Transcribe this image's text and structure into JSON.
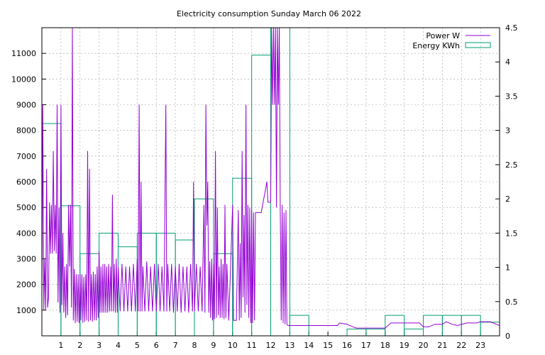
{
  "chart_data": {
    "type": "line",
    "title": "Electricity consumption Sunday March 06 2022",
    "x": {
      "range": [
        0,
        24
      ],
      "ticks": [
        1,
        2,
        3,
        4,
        5,
        6,
        7,
        8,
        9,
        10,
        11,
        12,
        13,
        14,
        15,
        16,
        17,
        18,
        19,
        20,
        21,
        22,
        23
      ]
    },
    "y_left": {
      "range": [
        0,
        12000
      ],
      "ticks": [
        1000,
        2000,
        3000,
        4000,
        5000,
        6000,
        7000,
        8000,
        9000,
        10000,
        11000
      ]
    },
    "y_right": {
      "range": [
        0,
        4.5
      ],
      "ticks": [
        "0",
        "0.5",
        "1",
        "1.5",
        "2",
        "2.5",
        "3",
        "3.5",
        "4",
        "4.5"
      ]
    },
    "grid": true,
    "legend_position": "top-right",
    "colors": {
      "power": "#9400d3",
      "energy": "#009e73"
    },
    "series": [
      {
        "name": "Power W",
        "axis": "left",
        "style": "line",
        "points": [
          [
            0,
            1000
          ],
          [
            0.05,
            9000
          ],
          [
            0.1,
            1000
          ],
          [
            0.15,
            3000
          ],
          [
            0.2,
            1000
          ],
          [
            0.25,
            6500
          ],
          [
            0.3,
            1100
          ],
          [
            0.35,
            1500
          ],
          [
            0.4,
            5200
          ],
          [
            0.45,
            3200
          ],
          [
            0.5,
            5100
          ],
          [
            0.55,
            3200
          ],
          [
            0.6,
            7200
          ],
          [
            0.65,
            3300
          ],
          [
            0.7,
            5100
          ],
          [
            0.75,
            3200
          ],
          [
            0.8,
            9000
          ],
          [
            0.85,
            1300
          ],
          [
            0.9,
            5000
          ],
          [
            0.95,
            900
          ],
          [
            1.0,
            9000
          ],
          [
            1.05,
            1200
          ],
          [
            1.1,
            4000
          ],
          [
            1.15,
            900
          ],
          [
            1.2,
            2700
          ],
          [
            1.25,
            700
          ],
          [
            1.3,
            2800
          ],
          [
            1.35,
            800
          ],
          [
            1.4,
            5100
          ],
          [
            1.45,
            2700
          ],
          [
            1.5,
            5100
          ],
          [
            1.55,
            1100
          ],
          [
            1.6,
            12000
          ],
          [
            1.65,
            600
          ],
          [
            1.7,
            2600
          ],
          [
            1.75,
            500
          ],
          [
            1.8,
            2400
          ],
          [
            1.85,
            550
          ],
          [
            1.9,
            2400
          ],
          [
            1.95,
            500
          ],
          [
            2.0,
            2400
          ],
          [
            2.05,
            600
          ],
          [
            2.1,
            2400
          ],
          [
            2.15,
            500
          ],
          [
            2.2,
            2300
          ],
          [
            2.25,
            550
          ],
          [
            2.3,
            2400
          ],
          [
            2.35,
            600
          ],
          [
            2.4,
            7200
          ],
          [
            2.45,
            550
          ],
          [
            2.5,
            6500
          ],
          [
            2.55,
            600
          ],
          [
            2.6,
            2400
          ],
          [
            2.65,
            550
          ],
          [
            2.7,
            2500
          ],
          [
            2.75,
            600
          ],
          [
            2.8,
            2400
          ],
          [
            2.85,
            600
          ],
          [
            2.9,
            2700
          ],
          [
            2.95,
            700
          ],
          [
            3.0,
            3300
          ],
          [
            3.05,
            900
          ],
          [
            3.1,
            2700
          ],
          [
            3.15,
            900
          ],
          [
            3.2,
            2800
          ],
          [
            3.25,
            900
          ],
          [
            3.3,
            2800
          ],
          [
            3.35,
            900
          ],
          [
            3.4,
            2700
          ],
          [
            3.45,
            900
          ],
          [
            3.5,
            2800
          ],
          [
            3.55,
            950
          ],
          [
            3.6,
            2700
          ],
          [
            3.65,
            950
          ],
          [
            3.7,
            5500
          ],
          [
            3.75,
            950
          ],
          [
            3.8,
            2800
          ],
          [
            3.85,
            900
          ],
          [
            3.9,
            3000
          ],
          [
            3.95,
            900
          ],
          [
            4.0,
            2700
          ],
          [
            4.1,
            950
          ],
          [
            4.2,
            2800
          ],
          [
            4.3,
            950
          ],
          [
            4.4,
            2700
          ],
          [
            4.5,
            950
          ],
          [
            4.6,
            2700
          ],
          [
            4.7,
            950
          ],
          [
            4.8,
            2800
          ],
          [
            4.9,
            950
          ],
          [
            5.0,
            3000
          ],
          [
            5.05,
            950
          ],
          [
            5.1,
            9000
          ],
          [
            5.15,
            950
          ],
          [
            5.2,
            6000
          ],
          [
            5.25,
            950
          ],
          [
            5.3,
            2700
          ],
          [
            5.4,
            950
          ],
          [
            5.5,
            2900
          ],
          [
            5.6,
            950
          ],
          [
            5.7,
            2700
          ],
          [
            5.8,
            950
          ],
          [
            5.9,
            2800
          ],
          [
            6.0,
            950
          ],
          [
            6.1,
            2800
          ],
          [
            6.2,
            950
          ],
          [
            6.3,
            2700
          ],
          [
            6.4,
            950
          ],
          [
            6.5,
            9000
          ],
          [
            6.55,
            950
          ],
          [
            6.6,
            2800
          ],
          [
            6.7,
            950
          ],
          [
            6.8,
            2800
          ],
          [
            6.9,
            900
          ],
          [
            7.0,
            2700
          ],
          [
            7.1,
            950
          ],
          [
            7.2,
            2800
          ],
          [
            7.3,
            900
          ],
          [
            7.4,
            2700
          ],
          [
            7.5,
            950
          ],
          [
            7.6,
            2700
          ],
          [
            7.7,
            900
          ],
          [
            7.8,
            2800
          ],
          [
            7.9,
            950
          ],
          [
            7.95,
            6000
          ],
          [
            8.0,
            950
          ],
          [
            8.1,
            2800
          ],
          [
            8.2,
            950
          ],
          [
            8.3,
            2700
          ],
          [
            8.4,
            950
          ],
          [
            8.5,
            5100
          ],
          [
            8.55,
            900
          ],
          [
            8.6,
            9000
          ],
          [
            8.65,
            4300
          ],
          [
            8.7,
            6000
          ],
          [
            8.75,
            900
          ],
          [
            8.8,
            2900
          ],
          [
            8.85,
            700
          ],
          [
            8.9,
            3000
          ],
          [
            8.95,
            600
          ],
          [
            9.0,
            2800
          ],
          [
            9.05,
            650
          ],
          [
            9.1,
            7200
          ],
          [
            9.15,
            700
          ],
          [
            9.2,
            5000
          ],
          [
            9.25,
            800
          ],
          [
            9.3,
            2700
          ],
          [
            9.35,
            700
          ],
          [
            9.4,
            3000
          ],
          [
            9.45,
            700
          ],
          [
            9.5,
            2800
          ],
          [
            9.55,
            650
          ],
          [
            9.6,
            5100
          ],
          [
            9.65,
            700
          ],
          [
            9.7,
            2800
          ],
          [
            9.8,
            600
          ],
          [
            10.0,
            5100
          ],
          [
            10.05,
            600
          ],
          [
            10.2,
            600
          ],
          [
            10.3,
            4900
          ],
          [
            10.35,
            600
          ],
          [
            10.4,
            3600
          ],
          [
            10.45,
            700
          ],
          [
            10.5,
            7200
          ],
          [
            10.55,
            1500
          ],
          [
            10.6,
            4700
          ],
          [
            10.65,
            900
          ],
          [
            10.7,
            9000
          ],
          [
            10.75,
            1200
          ],
          [
            10.8,
            5100
          ],
          [
            10.85,
            700
          ],
          [
            10.9,
            5000
          ],
          [
            10.95,
            500
          ],
          [
            11.0,
            4900
          ],
          [
            11.05,
            500
          ],
          [
            11.1,
            4800
          ],
          [
            11.15,
            600
          ],
          [
            11.2,
            4800
          ],
          [
            11.3,
            4800
          ],
          [
            11.5,
            4800
          ],
          [
            11.8,
            6000
          ],
          [
            11.85,
            5200
          ],
          [
            12.0,
            5200
          ],
          [
            12.05,
            12000
          ],
          [
            12.1,
            9000
          ],
          [
            12.15,
            12000
          ],
          [
            12.2,
            9000
          ],
          [
            12.25,
            12000
          ],
          [
            12.3,
            5000
          ],
          [
            12.35,
            12000
          ],
          [
            12.4,
            9000
          ],
          [
            12.45,
            12000
          ],
          [
            12.5,
            5100
          ],
          [
            12.55,
            600
          ],
          [
            12.6,
            5100
          ],
          [
            12.65,
            500
          ],
          [
            12.7,
            4800
          ],
          [
            12.75,
            450
          ],
          [
            12.8,
            4900
          ],
          [
            12.85,
            450
          ],
          [
            12.9,
            400
          ],
          [
            13.0,
            400
          ],
          [
            14.0,
            400
          ],
          [
            15.0,
            400
          ],
          [
            15.5,
            400
          ],
          [
            15.6,
            500
          ],
          [
            16.0,
            450
          ],
          [
            16.3,
            350
          ],
          [
            16.5,
            300
          ],
          [
            17.0,
            300
          ],
          [
            17.5,
            300
          ],
          [
            18.0,
            300
          ],
          [
            18.3,
            500
          ],
          [
            19.0,
            500
          ],
          [
            19.5,
            500
          ],
          [
            19.8,
            500
          ],
          [
            20.0,
            350
          ],
          [
            20.3,
            350
          ],
          [
            20.6,
            450
          ],
          [
            21.0,
            450
          ],
          [
            21.2,
            550
          ],
          [
            21.5,
            450
          ],
          [
            21.8,
            400
          ],
          [
            22.0,
            450
          ],
          [
            22.3,
            500
          ],
          [
            22.8,
            500
          ],
          [
            23.0,
            550
          ],
          [
            23.5,
            550
          ],
          [
            24.0,
            400
          ]
        ]
      },
      {
        "name": "Energy KWh",
        "axis": "right",
        "style": "histeps",
        "x": [
          0,
          1,
          2,
          3,
          4,
          5,
          6,
          7,
          8,
          9,
          10,
          11,
          12,
          13,
          14,
          15,
          16,
          17,
          18,
          19,
          20,
          21,
          22,
          23
        ],
        "values": [
          3.1,
          1.9,
          1.2,
          1.5,
          1.3,
          1.5,
          1.5,
          1.4,
          2.0,
          1.2,
          2.3,
          4.1,
          4.5,
          0.3,
          0,
          0,
          0.1,
          0.1,
          0.3,
          0.1,
          0.3,
          0.3,
          0.3,
          0.2
        ]
      }
    ]
  }
}
